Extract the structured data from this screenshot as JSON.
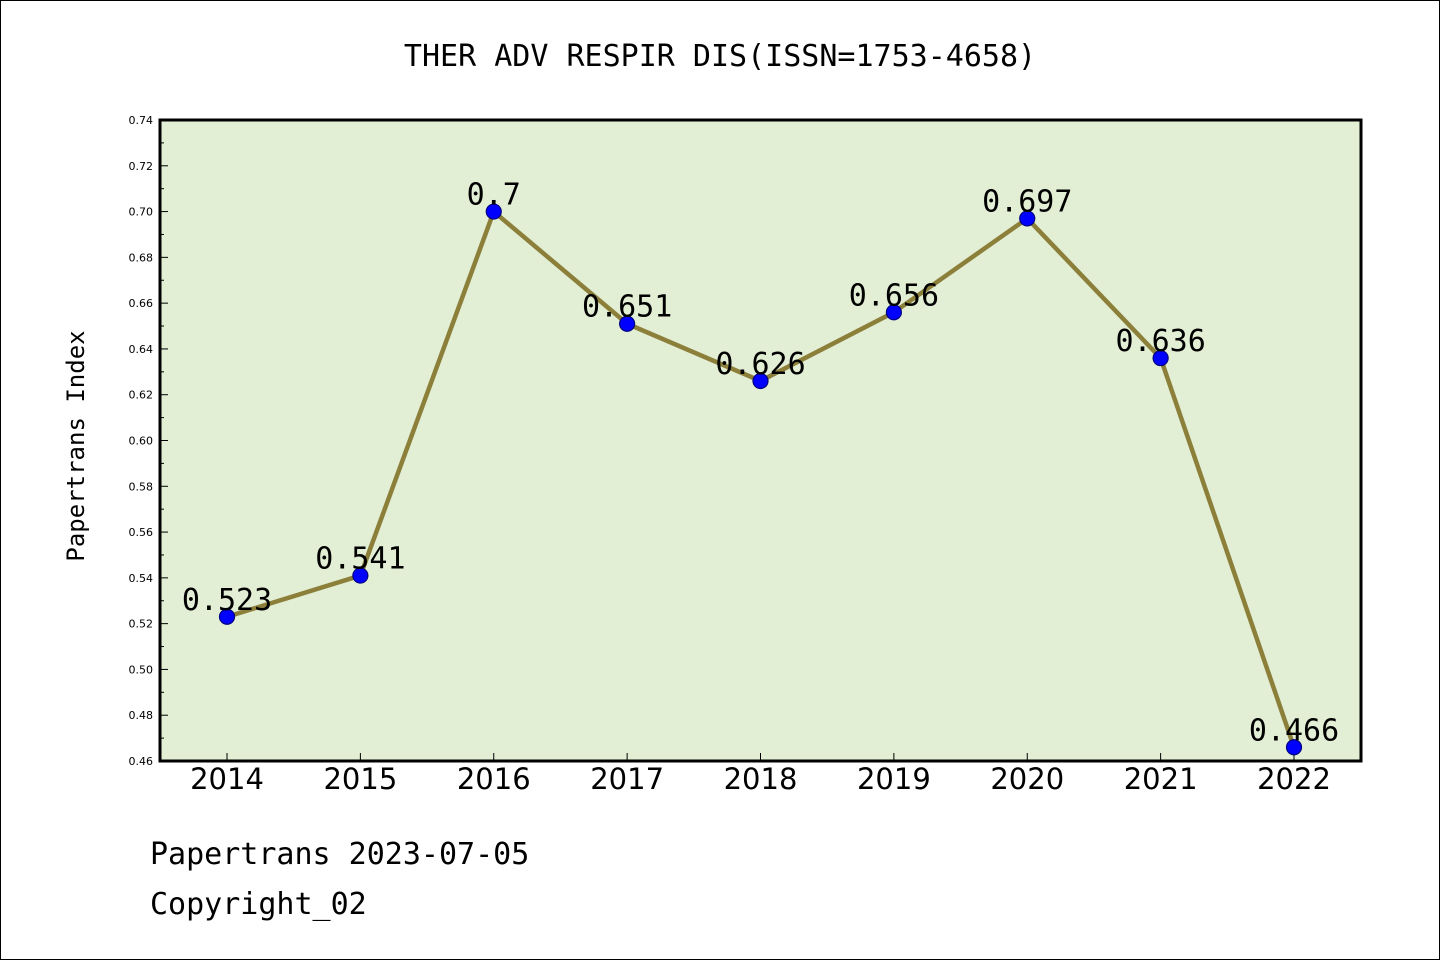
{
  "chart_data": {
    "type": "line",
    "title": "THER ADV RESPIR DIS(ISSN=1753-4658)",
    "xlabel": "",
    "ylabel": "Papertrans Index",
    "categories": [
      "2014",
      "2015",
      "2016",
      "2017",
      "2018",
      "2019",
      "2020",
      "2021",
      "2022"
    ],
    "series": [
      {
        "values": [
          0.523,
          0.541,
          0.7,
          0.651,
          0.626,
          0.656,
          0.697,
          0.636,
          0.466
        ],
        "labels": [
          "0.523",
          "0.541",
          "0.7",
          "0.651",
          "0.626",
          "0.656",
          "0.697",
          "0.636",
          "0.466"
        ]
      }
    ],
    "ylim": [
      0.46,
      0.74
    ],
    "yticks": [
      "0.46",
      "0.48",
      "0.50",
      "0.52",
      "0.54",
      "0.56",
      "0.58",
      "0.60",
      "0.62",
      "0.64",
      "0.66",
      "0.68",
      "0.70",
      "0.72",
      "0.74"
    ],
    "grid": false,
    "legend": "none"
  },
  "footer": {
    "line1": "Papertrans 2023-07-05",
    "line2": "Copyright_02"
  },
  "colors": {
    "plot_background": "#e2efd5",
    "line": "#8c7f3a",
    "marker": "#0000ff",
    "marker_edge": "#000080"
  }
}
